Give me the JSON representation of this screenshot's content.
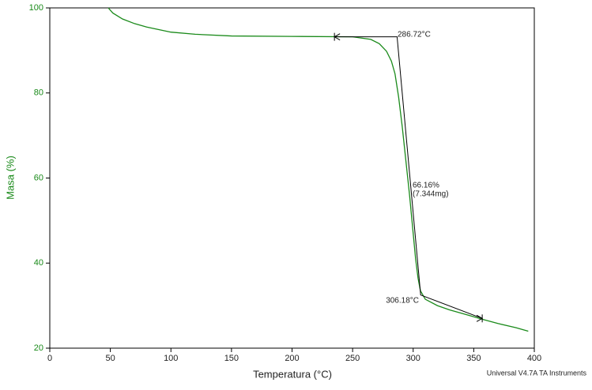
{
  "chart_data": {
    "type": "line",
    "x_label": "Temperatura (°C)",
    "y_label": "Masa (%)",
    "footer": "Universal V4.7A TA Instruments",
    "series": [
      {
        "color": "#1a8a1a",
        "x": [
          48.3,
          52,
          60,
          70,
          80,
          100,
          120,
          150,
          200,
          250,
          265,
          272,
          278,
          282,
          285,
          288,
          291,
          294,
          297,
          300,
          302,
          304,
          306,
          310,
          320,
          330,
          345,
          357,
          370,
          385,
          395
        ],
        "values": [
          100,
          98.8,
          97.4,
          96.3,
          95.5,
          94.3,
          93.8,
          93.4,
          93.3,
          93.2,
          92.6,
          91.6,
          89.8,
          87.5,
          84.5,
          79,
          72,
          64,
          56,
          47,
          41,
          36.5,
          33.5,
          31.5,
          30,
          29,
          27.8,
          26.8,
          25.8,
          24.8,
          24
        ]
      }
    ],
    "tangent": {
      "x": [
        235,
        286.72,
        306.18,
        357
      ],
      "y": [
        93.2,
        93.2,
        32.5,
        27
      ]
    },
    "annotations": [
      "286.72°C",
      "66.16%",
      "(7.344mg)",
      "306.18°C"
    ],
    "xlim": [
      0,
      400
    ],
    "ylim": [
      20,
      100
    ],
    "xticks": [
      0,
      50,
      100,
      150,
      200,
      250,
      300,
      350,
      400
    ],
    "yticks": [
      20,
      40,
      60,
      80,
      100
    ]
  }
}
